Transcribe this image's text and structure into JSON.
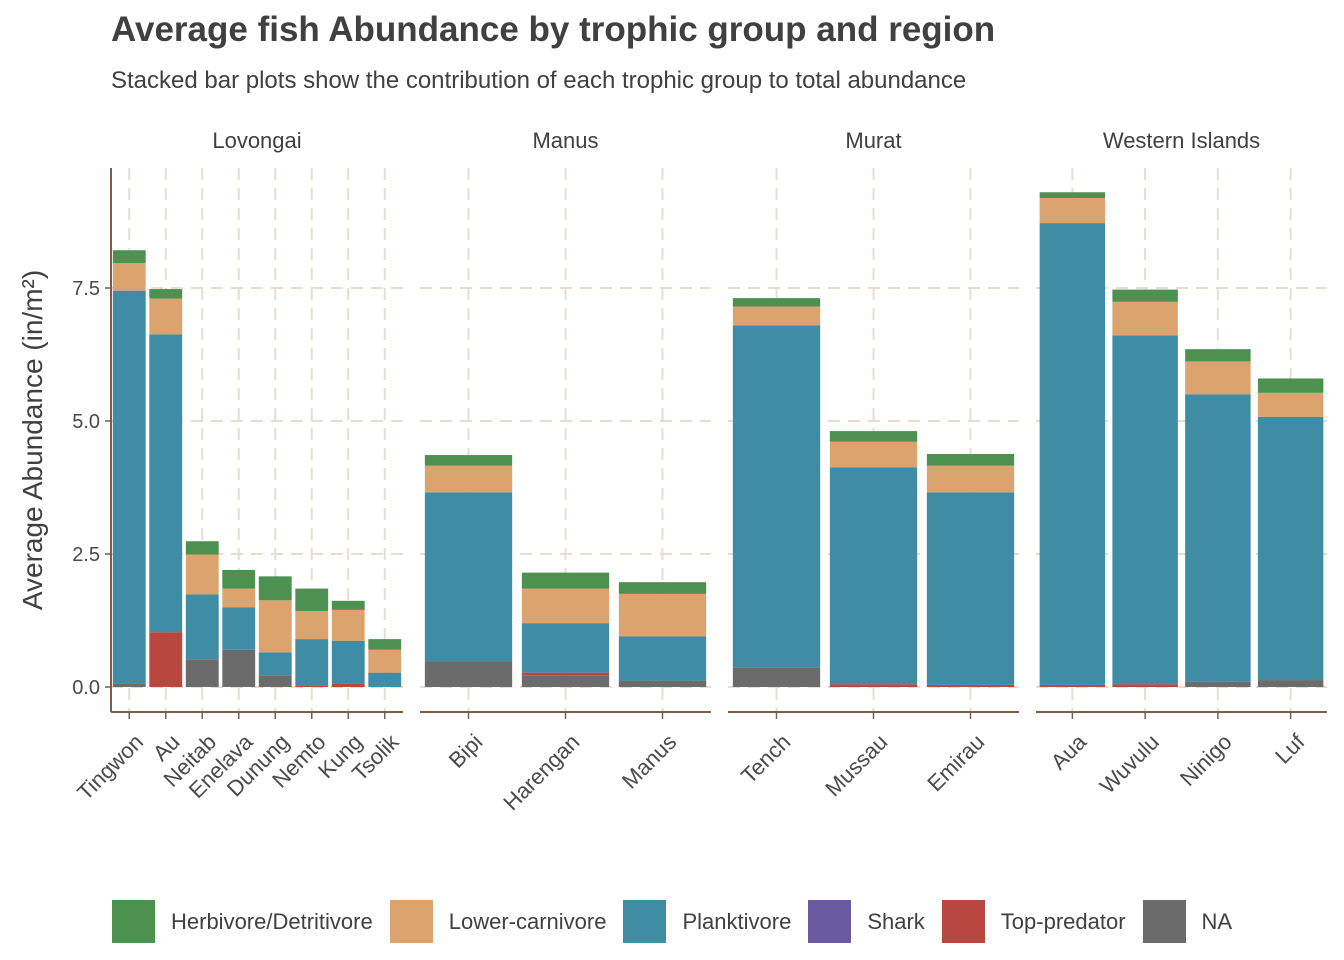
{
  "title": "Average fish Abundance by trophic group and region",
  "subtitle": "Stacked bar plots show the contribution of each trophic group to total abundance",
  "legend": [
    {
      "label": "Herbivore/Detritivore",
      "color": "#4c9150"
    },
    {
      "label": "Lower-carnivore",
      "color": "#dba46f"
    },
    {
      "label": "Planktivore",
      "color": "#3f8ca5"
    },
    {
      "label": "Shark",
      "color": "#6a5b9e"
    },
    {
      "label": "Top-predator",
      "color": "#b8473f"
    },
    {
      "label": "NA",
      "color": "#6b6b6b"
    }
  ],
  "chart_data": {
    "type": "bar",
    "stacked": true,
    "title": "Average fish Abundance by trophic group and region",
    "subtitle": "Stacked bar plots show the contribution of each trophic group to total abundance",
    "ylabel": "Average Abundance (in/m²)",
    "xlabel": "",
    "ylim": [
      0,
      9.5
    ],
    "yticks": [
      0,
      2.5,
      5,
      7.5
    ],
    "ytick_labels": [
      "0.0",
      "2.5",
      "5.0",
      "7.5"
    ],
    "grid": true,
    "legend_position": "bottom",
    "stack_order": [
      "NA",
      "Shark",
      "Top-predator",
      "Planktivore",
      "Lower-carnivore",
      "Herbivore/Detritivore"
    ],
    "facets": [
      {
        "name": "Lovongai",
        "categories": [
          "Tingwon",
          "Au",
          "Neitab",
          "Enelava",
          "Dunung",
          "Nemto",
          "Kung",
          "Tsolik"
        ],
        "series": [
          {
            "name": "NA",
            "values": [
              0.07,
              0.0,
              0.52,
              0.7,
              0.22,
              0.0,
              0.0,
              0.0
            ]
          },
          {
            "name": "Shark",
            "values": [
              0,
              0,
              0,
              0,
              0,
              0,
              0,
              0
            ]
          },
          {
            "name": "Top-predator",
            "values": [
              0.0,
              1.03,
              0.0,
              0.0,
              0.0,
              0.02,
              0.07,
              0.0
            ]
          },
          {
            "name": "Planktivore",
            "values": [
              7.38,
              5.6,
              1.22,
              0.8,
              0.43,
              0.88,
              0.8,
              0.27
            ]
          },
          {
            "name": "Lower-carnivore",
            "values": [
              0.52,
              0.67,
              0.75,
              0.35,
              0.98,
              0.53,
              0.58,
              0.43
            ]
          },
          {
            "name": "Herbivore/Detritivore",
            "values": [
              0.24,
              0.18,
              0.25,
              0.35,
              0.45,
              0.42,
              0.17,
              0.2
            ]
          }
        ]
      },
      {
        "name": "Manus",
        "categories": [
          "Bipi",
          "Harengan",
          "Manus"
        ],
        "series": [
          {
            "name": "NA",
            "values": [
              0.48,
              0.22,
              0.12
            ]
          },
          {
            "name": "Shark",
            "values": [
              0,
              0,
              0
            ]
          },
          {
            "name": "Top-predator",
            "values": [
              0.0,
              0.05,
              0.0
            ]
          },
          {
            "name": "Planktivore",
            "values": [
              3.18,
              0.93,
              0.83
            ]
          },
          {
            "name": "Lower-carnivore",
            "values": [
              0.5,
              0.65,
              0.8
            ]
          },
          {
            "name": "Herbivore/Detritivore",
            "values": [
              0.2,
              0.3,
              0.22
            ]
          }
        ]
      },
      {
        "name": "Murat",
        "categories": [
          "Tench",
          "Mussau",
          "Emirau"
        ],
        "series": [
          {
            "name": "NA",
            "values": [
              0.37,
              0.0,
              0.0
            ]
          },
          {
            "name": "Shark",
            "values": [
              0,
              0,
              0
            ]
          },
          {
            "name": "Top-predator",
            "values": [
              0.0,
              0.05,
              0.04
            ]
          },
          {
            "name": "Planktivore",
            "values": [
              6.43,
              4.08,
              3.62
            ]
          },
          {
            "name": "Lower-carnivore",
            "values": [
              0.35,
              0.48,
              0.5
            ]
          },
          {
            "name": "Herbivore/Detritivore",
            "values": [
              0.16,
              0.2,
              0.22
            ]
          }
        ]
      },
      {
        "name": "Western Islands",
        "categories": [
          "Aua",
          "Wuvulu",
          "Ninigo",
          "Luf"
        ],
        "series": [
          {
            "name": "NA",
            "values": [
              0.0,
              0.0,
              0.1,
              0.13
            ]
          },
          {
            "name": "Shark",
            "values": [
              0,
              0,
              0,
              0
            ]
          },
          {
            "name": "Top-predator",
            "values": [
              0.04,
              0.05,
              0.0,
              0.0
            ]
          },
          {
            "name": "Planktivore",
            "values": [
              8.68,
              6.56,
              5.4,
              4.95
            ]
          },
          {
            "name": "Lower-carnivore",
            "values": [
              0.47,
              0.63,
              0.62,
              0.45
            ]
          },
          {
            "name": "Herbivore/Detritivore",
            "values": [
              0.11,
              0.23,
              0.23,
              0.27
            ]
          }
        ]
      }
    ]
  }
}
